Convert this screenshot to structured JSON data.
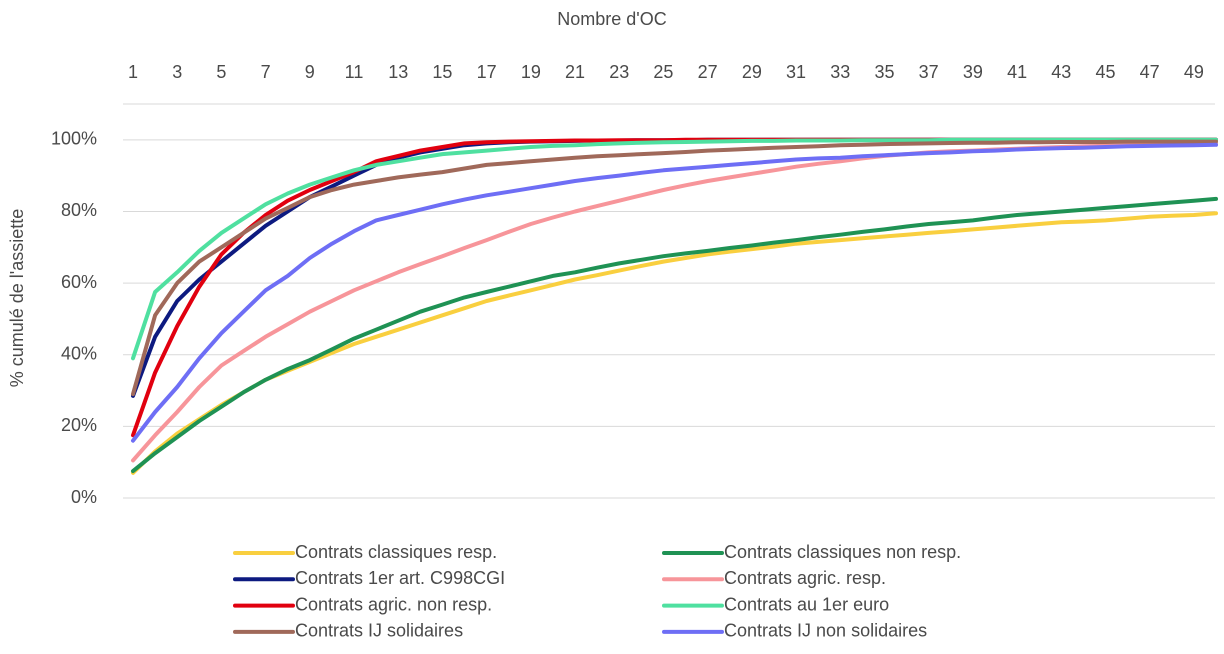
{
  "chart_data": {
    "type": "line",
    "xlabel": "Nombre d'OC",
    "ylabel": "% cumulé de l'assiette",
    "x": [
      1,
      2,
      3,
      4,
      5,
      6,
      7,
      8,
      9,
      10,
      11,
      12,
      13,
      14,
      15,
      16,
      17,
      18,
      19,
      20,
      21,
      22,
      23,
      24,
      25,
      26,
      27,
      28,
      29,
      30,
      31,
      32,
      33,
      34,
      35,
      36,
      37,
      38,
      39,
      40,
      41,
      42,
      43,
      44,
      45,
      46,
      47,
      48,
      49,
      50
    ],
    "xlim": [
      1,
      50
    ],
    "xticks": [
      1,
      3,
      5,
      7,
      9,
      11,
      13,
      15,
      17,
      19,
      21,
      23,
      25,
      27,
      29,
      31,
      33,
      35,
      37,
      39,
      41,
      43,
      45,
      47,
      49
    ],
    "ylim": [
      0,
      110
    ],
    "yticks": [
      {
        "value": 0,
        "label": "0%"
      },
      {
        "value": 20,
        "label": "20%"
      },
      {
        "value": 40,
        "label": "40%"
      },
      {
        "value": 60,
        "label": "60%"
      },
      {
        "value": 80,
        "label": "80%"
      },
      {
        "value": 100,
        "label": "100%"
      }
    ],
    "grid": true,
    "legend": "bottom",
    "series": [
      {
        "name": "Contrats classiques resp.",
        "color": "#f9cf3f",
        "values": [
          7,
          13,
          18,
          22,
          26,
          29.5,
          33,
          35.5,
          38,
          40.5,
          43,
          45,
          47,
          49,
          51,
          53,
          55,
          56.5,
          58,
          59.5,
          61,
          62.2,
          63.5,
          64.8,
          66,
          67,
          68,
          68.8,
          69.5,
          70.2,
          71,
          71.5,
          72,
          72.5,
          73,
          73.5,
          74,
          74.5,
          75,
          75.5,
          76,
          76.5,
          77,
          77.2,
          77.5,
          78,
          78.5,
          78.8,
          79,
          79.5
        ]
      },
      {
        "name": "Contrats classiques non resp.",
        "color": "#1f9254",
        "values": [
          7.5,
          12.5,
          17,
          21.5,
          25.5,
          29.5,
          33,
          36,
          38.5,
          41.5,
          44.5,
          47,
          49.5,
          52,
          54,
          56,
          57.5,
          59,
          60.5,
          62,
          63,
          64.3,
          65.5,
          66.5,
          67.5,
          68.3,
          69,
          69.8,
          70.5,
          71.3,
          72,
          72.8,
          73.5,
          74.3,
          75,
          75.8,
          76.5,
          77,
          77.5,
          78.3,
          79,
          79.5,
          80,
          80.5,
          81,
          81.5,
          82,
          82.5,
          83,
          83.5
        ]
      },
      {
        "name": "Contrats 1er art. C998CGI",
        "color": "#0d1a80",
        "values": [
          28.5,
          45,
          55,
          61,
          66,
          71,
          76,
          80,
          84,
          87,
          90,
          93,
          95,
          96.5,
          97.5,
          98.5,
          99,
          99.3,
          99.5,
          99.6,
          99.7,
          99.8,
          99.8,
          99.9,
          99.9,
          99.9,
          100,
          100,
          100,
          100,
          100,
          100,
          100,
          100,
          100,
          100,
          100,
          100,
          100,
          100,
          100,
          100,
          100,
          100,
          100,
          100,
          100,
          100,
          100,
          100
        ]
      },
      {
        "name": "Contrats agric. resp.",
        "color": "#f7959a",
        "values": [
          10.5,
          17.5,
          24,
          31,
          37,
          41,
          45,
          48.5,
          52,
          55,
          58,
          60.5,
          63,
          65.3,
          67.5,
          69.8,
          72,
          74.3,
          76.5,
          78.3,
          80,
          81.5,
          83,
          84.5,
          86,
          87.3,
          88.5,
          89.5,
          90.5,
          91.5,
          92.5,
          93.3,
          94,
          94.8,
          95.5,
          96,
          96.5,
          96.8,
          97,
          97.3,
          97.5,
          97.8,
          98,
          98.2,
          98.3,
          98.4,
          98.5,
          98.6,
          98.7,
          98.8
        ]
      },
      {
        "name": "Contrats agric. non resp.",
        "color": "#e1000f",
        "values": [
          17.5,
          35,
          48,
          59,
          68,
          74,
          79,
          83,
          86,
          88.5,
          91,
          94,
          95.5,
          97,
          98,
          99,
          99.3,
          99.5,
          99.6,
          99.7,
          99.8,
          99.8,
          99.9,
          99.9,
          99.9,
          100,
          100,
          100,
          100,
          100,
          100,
          100,
          100,
          100,
          100,
          100,
          100,
          100,
          100,
          100,
          100,
          100,
          100,
          100,
          100,
          100,
          100,
          100,
          100,
          100
        ]
      },
      {
        "name": "Contrats au 1er euro",
        "color": "#4fe0a0",
        "values": [
          39,
          57.5,
          63,
          69,
          74,
          78,
          82,
          85,
          87.5,
          89.5,
          91.5,
          93,
          94,
          95,
          96,
          96.5,
          97,
          97.5,
          98,
          98.3,
          98.5,
          98.8,
          99,
          99.2,
          99.3,
          99.4,
          99.5,
          99.6,
          99.7,
          99.7,
          99.8,
          99.8,
          99.8,
          99.9,
          99.9,
          99.9,
          99.9,
          100,
          100,
          100,
          100,
          100,
          100,
          100,
          100,
          100,
          100,
          100,
          100,
          100
        ]
      },
      {
        "name": "Contrats IJ solidaires",
        "color": "#a0695a",
        "values": [
          29,
          51,
          60,
          66,
          70,
          74,
          78,
          81,
          84,
          86,
          87.5,
          88.5,
          89.5,
          90.3,
          91,
          92,
          93,
          93.5,
          94,
          94.5,
          95,
          95.4,
          95.7,
          96,
          96.3,
          96.6,
          97,
          97.2,
          97.5,
          97.8,
          98,
          98.2,
          98.5,
          98.6,
          98.8,
          98.9,
          99,
          99.1,
          99.2,
          99.2,
          99.3,
          99.3,
          99.4,
          99.4,
          99.4,
          99.5,
          99.5,
          99.5,
          99.5,
          99.5
        ]
      },
      {
        "name": "Contrats IJ non solidaires",
        "color": "#6e6ef5",
        "values": [
          16,
          24,
          31,
          39,
          46,
          52,
          58,
          62,
          67,
          71,
          74.5,
          77.5,
          79,
          80.5,
          82,
          83.3,
          84.5,
          85.5,
          86.5,
          87.5,
          88.5,
          89.3,
          90,
          90.8,
          91.5,
          92,
          92.5,
          93,
          93.5,
          94,
          94.5,
          94.8,
          95,
          95.4,
          95.7,
          96,
          96.3,
          96.5,
          96.8,
          97,
          97.3,
          97.5,
          97.7,
          97.8,
          98,
          98.2,
          98.3,
          98.4,
          98.5,
          98.6
        ]
      }
    ]
  }
}
